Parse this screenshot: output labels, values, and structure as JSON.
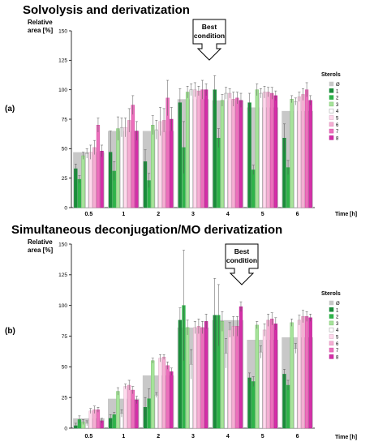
{
  "chart_data": [
    {
      "type": "bar",
      "panel_label": "(a)",
      "title": "Solvolysis and derivatization",
      "ylabel": [
        "Relative",
        "area [%]"
      ],
      "xlabel": "Time [h]",
      "yticks": [
        0,
        25,
        50,
        75,
        100,
        125,
        150
      ],
      "ylim": [
        0,
        150
      ],
      "categories": [
        "0.5",
        "1",
        "2",
        "3",
        "4",
        "5",
        "6"
      ],
      "legend_title": "Sterols",
      "annotation": {
        "lines": [
          "Best",
          "condition"
        ],
        "points_to": "3"
      },
      "series": [
        {
          "name": "Ø",
          "values": [
            47,
            65,
            65,
            92,
            91,
            85,
            82
          ]
        },
        {
          "name": "1",
          "values": [
            33,
            47,
            39,
            89,
            100,
            89,
            59
          ]
        },
        {
          "name": "2",
          "values": [
            24,
            31,
            23,
            51,
            59,
            32,
            34
          ]
        },
        {
          "name": "3",
          "values": [
            44,
            67,
            70,
            98,
            91,
            100,
            92
          ]
        },
        {
          "name": "4",
          "values": [
            46,
            68,
            66,
            100,
            97,
            97,
            90
          ]
        },
        {
          "name": "5",
          "values": [
            47,
            68,
            73,
            100,
            97,
            98,
            94
          ]
        },
        {
          "name": "6",
          "values": [
            51,
            74,
            74,
            99,
            92,
            98,
            96
          ]
        },
        {
          "name": "7",
          "values": [
            70,
            87,
            93,
            100,
            93,
            97,
            100
          ]
        },
        {
          "name": "8",
          "values": [
            48,
            65,
            75,
            100,
            91,
            95,
            91
          ]
        }
      ],
      "errors": [
        [
          null,
          4,
          3,
          3,
          4,
          6,
          6,
          6,
          5
        ],
        [
          null,
          18,
          8,
          10,
          8,
          8,
          10,
          8,
          8
        ],
        [
          null,
          10,
          6,
          8,
          8,
          12,
          10,
          15,
          10
        ],
        [
          null,
          12,
          22,
          5,
          5,
          6,
          4,
          8,
          5
        ],
        [
          null,
          12,
          8,
          5,
          5,
          4,
          6,
          5,
          6
        ],
        [
          null,
          8,
          4,
          5,
          4,
          5,
          4,
          5,
          4
        ],
        [
          null,
          12,
          6,
          3,
          3,
          4,
          5,
          6,
          4
        ]
      ]
    },
    {
      "type": "bar",
      "panel_label": "(b)",
      "title": "Simultaneous deconjugation/MO derivatization",
      "ylabel": [
        "Relative",
        "area [%]"
      ],
      "xlabel": "Time [h]",
      "yticks": [
        0,
        25,
        50,
        75,
        100,
        125,
        150
      ],
      "ylim": [
        0,
        150
      ],
      "categories": [
        "0.5",
        "1",
        "2",
        "3",
        "4",
        "5",
        "6"
      ],
      "legend_title": "Sterols",
      "annotation": {
        "lines": [
          "Best",
          "condition"
        ],
        "points_to": "4"
      },
      "series": [
        {
          "name": "Ø",
          "values": [
            8,
            24,
            43,
            82,
            88,
            72,
            74
          ]
        },
        {
          "name": "1",
          "values": [
            2,
            8,
            17,
            88,
            92,
            41,
            44
          ]
        },
        {
          "name": "2",
          "values": [
            7,
            11,
            24,
            100,
            92,
            38,
            35
          ]
        },
        {
          "name": "3",
          "values": [
            5,
            30,
            55,
            82,
            87,
            84,
            86
          ]
        },
        {
          "name": "4",
          "values": [
            4,
            12,
            27,
            52,
            61,
            62,
            65
          ]
        },
        {
          "name": "5",
          "values": [
            14,
            34,
            57,
            82,
            80,
            80,
            88
          ]
        },
        {
          "name": "6",
          "values": [
            15,
            35,
            58,
            83,
            83,
            88,
            91
          ]
        },
        {
          "name": "7",
          "values": [
            15,
            31,
            51,
            82,
            83,
            89,
            91
          ]
        },
        {
          "name": "8",
          "values": [
            6,
            23,
            46,
            87,
            99,
            85,
            90
          ]
        }
      ],
      "errors": [
        [
          null,
          2,
          3,
          2,
          2,
          2,
          3,
          2,
          2
        ],
        [
          null,
          3,
          2,
          3,
          3,
          2,
          4,
          3,
          3
        ],
        [
          null,
          8,
          8,
          2,
          2,
          3,
          2,
          3,
          3
        ],
        [
          null,
          10,
          45,
          6,
          12,
          5,
          6,
          5,
          6
        ],
        [
          null,
          30,
          25,
          8,
          12,
          6,
          8,
          8,
          4
        ],
        [
          null,
          4,
          4,
          3,
          5,
          5,
          5,
          5,
          5
        ],
        [
          null,
          4,
          4,
          3,
          4,
          4,
          5,
          4,
          3
        ]
      ]
    }
  ],
  "colors": {
    "background_bar": "#c8c8c8",
    "series": [
      "#c8c8c8",
      "#1a8c3a",
      "#2fb34a",
      "#a6e39a",
      "#ffffff",
      "#ffd9ec",
      "#f5aed3",
      "#ec6fbc",
      "#d42fa8"
    ],
    "series_stroke": [
      "#c8c8c8",
      "#1a8c3a",
      "#2fb34a",
      "#7cc46f",
      "#9a9a9a",
      "#d7a8c2",
      "#d889b3",
      "#d24fa3",
      "#b0208b"
    ]
  }
}
